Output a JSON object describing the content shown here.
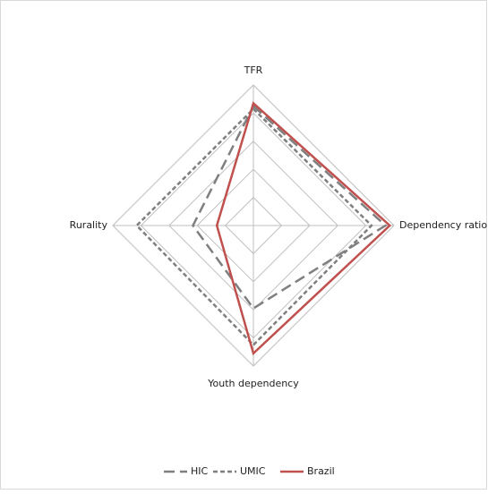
{
  "chart_data": {
    "type": "radar",
    "categories": [
      "TFR",
      "Dependency ratio",
      "Youth dependency",
      "Rurality"
    ],
    "ylim": [
      0,
      1
    ],
    "yticks": [
      0,
      0.2,
      0.4,
      0.6,
      0.8,
      1.0
    ],
    "series": [
      {
        "name": "HIC",
        "color": "#7f7f7f",
        "dash": "12,6",
        "values": [
          0.85,
          0.94,
          0.59,
          0.43
        ]
      },
      {
        "name": "UMIC",
        "color": "#7f7f7f",
        "dash": "5,3",
        "values": [
          0.83,
          0.84,
          0.85,
          0.83
        ]
      },
      {
        "name": "Brazil",
        "color": "#c0504d",
        "dash": "none",
        "values": [
          0.87,
          0.97,
          0.91,
          0.26
        ]
      }
    ]
  }
}
